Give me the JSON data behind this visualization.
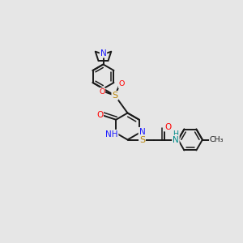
{
  "background_color": "#e6e6e6",
  "bond_color": "#1a1a1a",
  "lw": 1.4,
  "lw2": 1.1,
  "xlim": [
    0,
    10
  ],
  "ylim": [
    0,
    10
  ],
  "figsize": [
    3.0,
    3.0
  ],
  "dpi": 100
}
